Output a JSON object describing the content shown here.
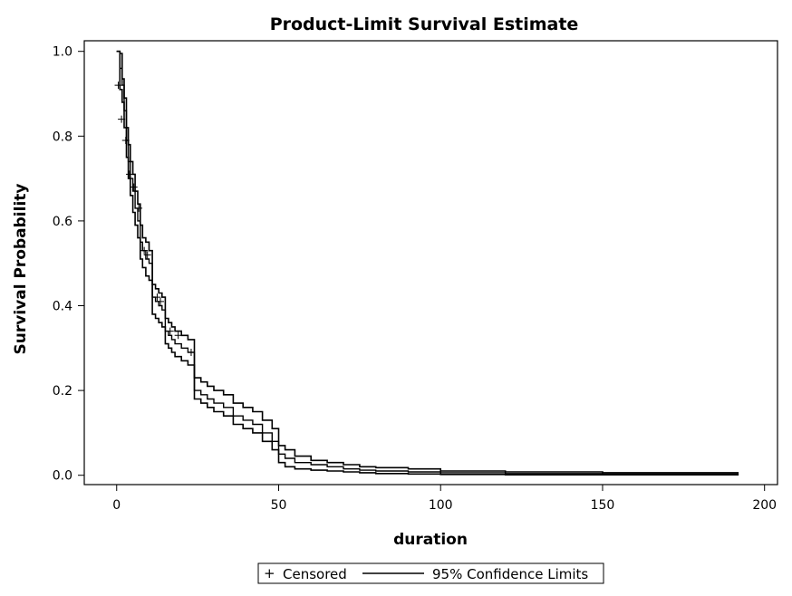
{
  "chart_data": {
    "type": "line",
    "title": "Product-Limit Survival Estimate",
    "xlabel": "duration",
    "ylabel": "Survival Probability",
    "xlim": [
      -10,
      204
    ],
    "ylim": [
      -0.022,
      1.025
    ],
    "xticks": [
      0,
      50,
      100,
      150,
      200
    ],
    "xtick_labels": [
      "0",
      "50",
      "100",
      "150",
      "200"
    ],
    "yticks": [
      0.0,
      0.2,
      0.4,
      0.6,
      0.8,
      1.0
    ],
    "ytick_labels": [
      "0.0",
      "0.2",
      "0.4",
      "0.6",
      "0.8",
      "1.0"
    ],
    "grid": false,
    "legend_position": "bottom",
    "legend": {
      "censored_label": "Censored",
      "ci_label": "95% Confidence Limits",
      "censored_marker": "+"
    },
    "series": [
      {
        "role": "estimate",
        "step": true,
        "x": [
          0,
          1,
          1.7,
          2.3,
          3,
          3.6,
          4.2,
          5,
          5.7,
          6.5,
          7.3,
          8,
          9,
          10,
          11,
          12,
          13,
          14,
          15,
          16,
          17,
          18,
          20,
          22,
          24,
          26,
          28,
          30,
          33,
          36,
          39,
          42,
          45,
          48,
          50,
          52,
          55,
          60,
          65,
          70,
          75,
          80,
          90,
          100,
          120,
          150,
          192
        ],
        "y": [
          1.0,
          0.96,
          0.92,
          0.86,
          0.79,
          0.74,
          0.7,
          0.67,
          0.63,
          0.6,
          0.55,
          0.53,
          0.51,
          0.5,
          0.42,
          0.41,
          0.4,
          0.39,
          0.34,
          0.33,
          0.32,
          0.31,
          0.3,
          0.29,
          0.2,
          0.19,
          0.18,
          0.17,
          0.16,
          0.14,
          0.13,
          0.12,
          0.1,
          0.08,
          0.05,
          0.04,
          0.03,
          0.025,
          0.02,
          0.015,
          0.012,
          0.01,
          0.008,
          0.006,
          0.004,
          0.003,
          0.003
        ]
      },
      {
        "role": "upper_limit",
        "step": true,
        "x": [
          0,
          1,
          1.7,
          2.3,
          3,
          3.6,
          4.2,
          5,
          5.7,
          6.5,
          7.3,
          8,
          9,
          10,
          11,
          12,
          13,
          14,
          15,
          16,
          17,
          18,
          20,
          22,
          24,
          26,
          28,
          30,
          33,
          36,
          39,
          42,
          45,
          48,
          50,
          52,
          55,
          60,
          65,
          70,
          75,
          80,
          90,
          100,
          120,
          150,
          192
        ],
        "y": [
          1.0,
          0.995,
          0.935,
          0.89,
          0.82,
          0.78,
          0.74,
          0.71,
          0.67,
          0.64,
          0.59,
          0.56,
          0.55,
          0.53,
          0.45,
          0.44,
          0.43,
          0.42,
          0.37,
          0.36,
          0.35,
          0.34,
          0.33,
          0.32,
          0.23,
          0.22,
          0.21,
          0.2,
          0.19,
          0.17,
          0.16,
          0.15,
          0.13,
          0.11,
          0.07,
          0.06,
          0.045,
          0.035,
          0.03,
          0.025,
          0.02,
          0.018,
          0.015,
          0.01,
          0.008,
          0.006,
          0.006
        ]
      },
      {
        "role": "lower_limit",
        "step": true,
        "x": [
          0,
          1,
          1.7,
          2.3,
          3,
          3.6,
          4.2,
          5,
          5.7,
          6.5,
          7.3,
          8,
          9,
          10,
          11,
          12,
          13,
          14,
          15,
          16,
          17,
          18,
          20,
          22,
          24,
          26,
          28,
          30,
          33,
          36,
          39,
          42,
          45,
          48,
          50,
          52,
          55,
          60,
          65,
          70,
          75,
          80,
          90,
          100,
          120,
          150,
          192
        ],
        "y": [
          1.0,
          0.91,
          0.88,
          0.82,
          0.75,
          0.7,
          0.66,
          0.62,
          0.59,
          0.56,
          0.51,
          0.49,
          0.47,
          0.46,
          0.38,
          0.37,
          0.36,
          0.35,
          0.31,
          0.3,
          0.29,
          0.28,
          0.27,
          0.26,
          0.18,
          0.17,
          0.16,
          0.15,
          0.14,
          0.12,
          0.11,
          0.1,
          0.08,
          0.06,
          0.03,
          0.02,
          0.015,
          0.012,
          0.01,
          0.008,
          0.006,
          0.004,
          0.003,
          0.002,
          0.001,
          0.001,
          0.001
        ]
      }
    ],
    "censored_points": {
      "x": [
        0.5,
        1.5,
        2.8,
        4.0,
        5.3,
        6.8,
        8.5,
        9.5,
        12.5,
        13.5,
        16.5,
        19.0,
        23.0
      ],
      "y": [
        0.92,
        0.84,
        0.79,
        0.71,
        0.68,
        0.63,
        0.53,
        0.52,
        0.42,
        0.41,
        0.34,
        0.33,
        0.29
      ]
    }
  }
}
